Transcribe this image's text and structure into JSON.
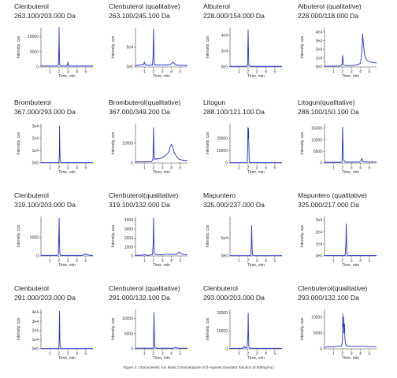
{
  "figure_caption": "Figure 3. Characteristic Ion Mass Chromatogram of β-Agonist Standard Solution (0.500ng/mL)",
  "chart_data": [
    {
      "type": "line",
      "name": "Clenbuterol",
      "transition": "263.100/203.000 Da",
      "xlabel": "Time, min",
      "ylabel": "Intensity, cps",
      "x_ticks": [
        1,
        2,
        3,
        4,
        5
      ],
      "y_ticks": [
        "0",
        "5000",
        "10000"
      ],
      "xlim": [
        0,
        5.8
      ],
      "ylim": [
        0,
        13000
      ],
      "color": "#1f2fd8",
      "series": [
        {
          "x": [
            0,
            0.5,
            1.0,
            1.5,
            1.85,
            1.95,
            2.0,
            2.02,
            2.04,
            2.07,
            2.1,
            2.18,
            2.5,
            2.9,
            3.0,
            3.05,
            3.1,
            3.4,
            4,
            4.5,
            5,
            5.5,
            5.8
          ],
          "y": [
            300,
            300,
            300,
            300,
            300,
            800,
            7000,
            13000,
            7000,
            2000,
            500,
            300,
            300,
            300,
            1500,
            500,
            300,
            300,
            300,
            300,
            300,
            300,
            300
          ]
        }
      ]
    },
    {
      "type": "line",
      "name": "Clenbuterol (qualitative)",
      "transition": "263.100/245.100 Da",
      "xlabel": "Time, min",
      "ylabel": "Intensity, cps",
      "x_ticks": [
        1,
        2,
        3,
        4,
        5
      ],
      "y_ticks": [
        "0e0",
        "5e4"
      ],
      "xlim": [
        0,
        5.8
      ],
      "ylim": [
        0,
        100000
      ],
      "color": "#1f2fd8",
      "series": [
        {
          "x": [
            0,
            0.5,
            0.9,
            1.0,
            1.1,
            1.5,
            1.9,
            1.98,
            2.02,
            2.06,
            2.1,
            2.3,
            2.7,
            3.0,
            3.5,
            3.9,
            4.2,
            4.5,
            5,
            5.5,
            5.8
          ],
          "y": [
            3000,
            5000,
            6000,
            12000,
            5000,
            4000,
            5000,
            40000,
            95000,
            40000,
            6000,
            5000,
            5000,
            5000,
            5000,
            6000,
            12000,
            5000,
            4000,
            4000,
            3000
          ]
        }
      ]
    },
    {
      "type": "line",
      "name": "Albuterol",
      "transition": "228.000/154.000 Da",
      "xlabel": "Time, min",
      "ylabel": "Intensity, cps",
      "x_ticks": [
        1,
        2,
        3,
        4,
        5
      ],
      "y_ticks": [
        "0e0",
        "2e4",
        "4e4"
      ],
      "xlim": [
        0,
        5.8
      ],
      "ylim": [
        0,
        50000
      ],
      "color": "#1f2fd8",
      "series": [
        {
          "x": [
            0,
            1,
            1.8,
            1.95,
            2.0,
            2.02,
            2.05,
            2.1,
            2.3,
            3,
            4,
            5,
            5.8
          ],
          "y": [
            800,
            800,
            800,
            1500,
            30000,
            47000,
            25000,
            2000,
            800,
            800,
            800,
            800,
            800
          ]
        }
      ]
    },
    {
      "type": "line",
      "name": "Albuterol (qualitative)",
      "transition": "228.000/118.000 Da",
      "xlabel": "Time, min",
      "ylabel": "Intensity, cps",
      "x_ticks": [
        1,
        2,
        3,
        4,
        5
      ],
      "y_ticks": [
        "0e0",
        "1e4",
        "2e4",
        "3e4",
        "4e4"
      ],
      "xlim": [
        0,
        5.8
      ],
      "ylim": [
        0,
        45000
      ],
      "color": "#1f2fd8",
      "series": [
        {
          "x": [
            0,
            1,
            1.8,
            1.95,
            2.0,
            2.03,
            2.06,
            2.1,
            2.5,
            3,
            3.5,
            4.0,
            4.15,
            4.25,
            4.35,
            4.5,
            4.7,
            5,
            5.5,
            5.8
          ],
          "y": [
            1000,
            1000,
            1000,
            3000,
            11000,
            13000,
            8000,
            2000,
            1500,
            1500,
            2000,
            4000,
            15000,
            38000,
            25000,
            12000,
            8000,
            6000,
            5000,
            4500
          ]
        }
      ]
    },
    {
      "type": "line",
      "name": "Brombuterol",
      "transition": "367.000/293.000 Da",
      "xlabel": "Time, min",
      "ylabel": "Intensity, cps",
      "x_ticks": [
        1,
        2,
        3,
        4,
        5
      ],
      "y_ticks": [
        "0e0",
        "1e4",
        "2e4",
        "3e4"
      ],
      "xlim": [
        0,
        5.8
      ],
      "ylim": [
        0,
        32000
      ],
      "color": "#1f2fd8",
      "series": [
        {
          "x": [
            0,
            1,
            1.9,
            2.0,
            2.05,
            2.08,
            2.1,
            2.14,
            2.2,
            2.5,
            3,
            4,
            5,
            5.8
          ],
          "y": [
            300,
            300,
            300,
            500,
            6000,
            30000,
            15000,
            2000,
            500,
            300,
            300,
            300,
            300,
            300
          ]
        }
      ]
    },
    {
      "type": "line",
      "name": "Brombuterol(qualitative)",
      "transition": "367.000/349.200 Da",
      "xlabel": "Time, min",
      "ylabel": "Intensity, cps",
      "x_ticks": [
        1,
        2,
        3,
        4,
        5
      ],
      "y_ticks": [
        "0",
        "10000"
      ],
      "xlim": [
        0,
        5.8
      ],
      "ylim": [
        0,
        20000
      ],
      "color": "#1f2fd8",
      "series": [
        {
          "x": [
            0,
            1,
            1.8,
            1.95,
            2.0,
            2.02,
            2.05,
            2.1,
            2.4,
            2.9,
            3.4,
            3.7,
            3.85,
            4.0,
            4.15,
            4.3,
            4.5,
            4.8,
            5.2,
            5.8
          ],
          "y": [
            600,
            600,
            700,
            2000,
            12000,
            18000,
            8000,
            2000,
            2000,
            2500,
            4000,
            5500,
            8000,
            9500,
            8500,
            5500,
            4000,
            2000,
            1500,
            1200
          ]
        }
      ]
    },
    {
      "type": "line",
      "name": "Litogun",
      "transition": "288.100/121.100 Da",
      "xlabel": "Time, min",
      "ylabel": "Intensity, cps",
      "x_ticks": [
        1,
        2,
        3,
        4,
        5
      ],
      "y_ticks": [
        "0",
        "10000",
        "20000"
      ],
      "xlim": [
        0,
        5.8
      ],
      "ylim": [
        0,
        32000
      ],
      "color": "#1f2fd8",
      "series": [
        {
          "x": [
            0,
            1,
            1.8,
            1.92,
            1.97,
            2.0,
            2.03,
            2.06,
            2.1,
            2.14,
            2.18,
            2.3,
            3,
            4,
            5,
            5.8
          ],
          "y": [
            300,
            300,
            300,
            800,
            15000,
            29000,
            20000,
            28000,
            15000,
            3000,
            800,
            300,
            300,
            300,
            300,
            300
          ]
        }
      ]
    },
    {
      "type": "line",
      "name": "Litogun(qualitative)",
      "transition": "288.100/150.100 Da",
      "xlabel": "Time, min",
      "ylabel": "Intensity, cps",
      "x_ticks": [
        1,
        2,
        3,
        4,
        5
      ],
      "y_ticks": [
        "0",
        "5000",
        "10000",
        "15000"
      ],
      "xlim": [
        0,
        5.8
      ],
      "ylim": [
        0,
        17000
      ],
      "color": "#1f2fd8",
      "series": [
        {
          "x": [
            0,
            1,
            1.8,
            1.95,
            2.0,
            2.02,
            2.05,
            2.1,
            2.3,
            3,
            3.9,
            4.05,
            4.15,
            4.3,
            5,
            5.8
          ],
          "y": [
            300,
            300,
            300,
            600,
            11000,
            15500,
            9000,
            1500,
            400,
            400,
            400,
            800,
            2000,
            600,
            400,
            400
          ]
        }
      ]
    },
    {
      "type": "line",
      "name": "Clenbuterol",
      "transition": "319.100/203.000 Da",
      "xlabel": "Time, min",
      "ylabel": "Intensity, cps",
      "x_ticks": [
        1,
        2,
        3,
        4,
        5
      ],
      "y_ticks": [
        "0",
        "5000"
      ],
      "xlim": [
        0,
        5.8
      ],
      "ylim": [
        0,
        10500
      ],
      "color": "#1f2fd8",
      "series": [
        {
          "x": [
            0,
            1,
            1.8,
            1.95,
            2.0,
            2.03,
            2.06,
            2.1,
            2.2,
            2.5,
            3,
            3.5,
            4,
            4.5,
            4.8,
            5.0,
            5.2,
            5.5,
            5.8
          ],
          "y": [
            150,
            150,
            150,
            500,
            6000,
            10000,
            5000,
            800,
            200,
            150,
            150,
            150,
            150,
            150,
            300,
            600,
            300,
            150,
            150
          ]
        }
      ]
    },
    {
      "type": "line",
      "name": "Clenbuterol(qualitative)",
      "transition": "319.100/132.000 Da",
      "xlabel": "Time, min",
      "ylabel": "Intensity, cps",
      "x_ticks": [
        1,
        2,
        3,
        4,
        5
      ],
      "y_ticks": [
        "0",
        "1000",
        "2000",
        "3000",
        "4000"
      ],
      "xlim": [
        0,
        5.8
      ],
      "ylim": [
        0,
        4400
      ],
      "color": "#1f2fd8",
      "series": [
        {
          "x": [
            0,
            0.8,
            1.0,
            1.2,
            1.5,
            1.9,
            1.98,
            2.02,
            2.06,
            2.1,
            2.3,
            2.6,
            3,
            3.4,
            3.8,
            4.2,
            4.5,
            4.75,
            4.9,
            5.1,
            5.5,
            5.8
          ],
          "y": [
            80,
            80,
            150,
            80,
            80,
            150,
            1500,
            4200,
            1500,
            300,
            150,
            150,
            120,
            200,
            150,
            200,
            150,
            300,
            450,
            250,
            150,
            150
          ]
        }
      ]
    },
    {
      "type": "line",
      "name": "Mapuntero",
      "transition": "325.000/237.000 Da",
      "xlabel": "Time, min",
      "ylabel": "Intensity, cps",
      "x_ticks": [
        1,
        2,
        3,
        4,
        5
      ],
      "y_ticks": [
        "0e0",
        "5e4"
      ],
      "xlim": [
        0,
        5.8
      ],
      "ylim": [
        0,
        110000
      ],
      "color": "#1f2fd8",
      "series": [
        {
          "x": [
            0,
            1,
            2.0,
            2.3,
            2.38,
            2.42,
            2.46,
            2.5,
            2.6,
            3,
            4,
            5,
            5.8
          ],
          "y": [
            800,
            800,
            800,
            1000,
            30000,
            85000,
            30000,
            3000,
            1000,
            800,
            800,
            800,
            800
          ]
        }
      ]
    },
    {
      "type": "line",
      "name": "Mapuntero (qualitative)",
      "transition": "325.000/217.000 Da",
      "xlabel": "Time, min",
      "ylabel": "Intensity, cps",
      "x_ticks": [
        1,
        2,
        3,
        4,
        5
      ],
      "y_ticks": [
        "0e0",
        "1e4",
        "2e4",
        "3e4"
      ],
      "xlim": [
        0,
        5.8
      ],
      "ylim": [
        0,
        33000
      ],
      "color": "#1f2fd8",
      "series": [
        {
          "x": [
            0,
            1,
            2.0,
            2.3,
            2.38,
            2.42,
            2.46,
            2.5,
            2.6,
            3,
            4,
            5,
            5.8
          ],
          "y": [
            300,
            300,
            300,
            500,
            10000,
            27000,
            10000,
            1500,
            400,
            300,
            300,
            300,
            300
          ]
        }
      ]
    },
    {
      "type": "line",
      "name": "Clenbuterol",
      "transition": "291.000/203.000 Da",
      "xlabel": "Time, min",
      "ylabel": "Intensity, cps",
      "x_ticks": [
        1,
        2,
        3,
        4,
        5
      ],
      "y_ticks": [
        "0e0",
        "1e4",
        "2e4",
        "3e4",
        "4e4"
      ],
      "xlim": [
        0,
        5.8
      ],
      "ylim": [
        0,
        43000
      ],
      "color": "#1f2fd8",
      "series": [
        {
          "x": [
            0,
            1,
            1.9,
            2.0,
            2.04,
            2.07,
            2.1,
            2.14,
            2.2,
            2.5,
            3,
            4,
            5,
            5.8
          ],
          "y": [
            300,
            300,
            300,
            500,
            15000,
            41000,
            15000,
            2000,
            500,
            300,
            300,
            300,
            300,
            300
          ]
        }
      ]
    },
    {
      "type": "line",
      "name": "Clenbuterol (qualitative)",
      "transition": "291.000/132.100 Da",
      "xlabel": "Time, min",
      "ylabel": "Intensity, cps",
      "x_ticks": [
        1,
        2,
        3,
        4,
        5
      ],
      "y_ticks": [
        "0",
        "5000",
        "10000"
      ],
      "xlim": [
        0,
        5.8
      ],
      "ylim": [
        0,
        13000
      ],
      "color": "#1f2fd8",
      "series": [
        {
          "x": [
            0,
            1,
            1.9,
            2.0,
            2.04,
            2.07,
            2.1,
            2.14,
            2.2,
            2.5,
            3,
            3.5,
            4,
            4.3,
            4.45,
            4.6,
            5,
            5.5,
            5.8
          ],
          "y": [
            200,
            200,
            200,
            400,
            6000,
            12000,
            5000,
            800,
            300,
            200,
            200,
            200,
            200,
            300,
            600,
            300,
            200,
            200,
            200
          ]
        }
      ]
    },
    {
      "type": "line",
      "name": "Clenbuterol",
      "transition": "293.000/203.000 Da",
      "xlabel": "Time, min",
      "ylabel": "Intensity, cps",
      "x_ticks": [
        1,
        2,
        3,
        4,
        5
      ],
      "y_ticks": [
        "0",
        "10000",
        "20000"
      ],
      "xlim": [
        0,
        5.8
      ],
      "ylim": [
        0,
        22000
      ],
      "color": "#1f2fd8",
      "series": [
        {
          "x": [
            0,
            1,
            1.5,
            1.6,
            1.7,
            1.9,
            2.0,
            2.03,
            2.06,
            2.1,
            2.14,
            2.2,
            2.5,
            3,
            4,
            5,
            5.8
          ],
          "y": [
            300,
            300,
            400,
            1500,
            500,
            600,
            8000,
            20000,
            9000,
            1500,
            500,
            400,
            300,
            300,
            300,
            300,
            300
          ]
        }
      ]
    },
    {
      "type": "line",
      "name": "Clenbuterol(qualitative)",
      "transition": "293.000/132.100 Da",
      "xlabel": "Time, min",
      "ylabel": "Intensity, cps",
      "x_ticks": [
        1,
        2,
        3,
        4,
        5
      ],
      "y_ticks": [
        "0",
        "5000",
        "10000"
      ],
      "xlim": [
        0,
        5.8
      ],
      "ylim": [
        0,
        12500
      ],
      "color": "#1f2fd8",
      "series": [
        {
          "x": [
            0,
            0.5,
            1.0,
            1.3,
            1.6,
            1.9,
            2.0,
            2.04,
            2.08,
            2.12,
            2.16,
            2.22,
            2.28,
            2.35,
            2.5,
            2.8,
            3.2,
            3.6,
            4,
            4.5,
            5,
            5.5,
            5.8
          ],
          "y": [
            500,
            700,
            600,
            800,
            900,
            900,
            3000,
            11000,
            7000,
            10000,
            5000,
            8000,
            3000,
            1500,
            900,
            900,
            800,
            800,
            800,
            800,
            700,
            700,
            700
          ]
        }
      ]
    }
  ]
}
